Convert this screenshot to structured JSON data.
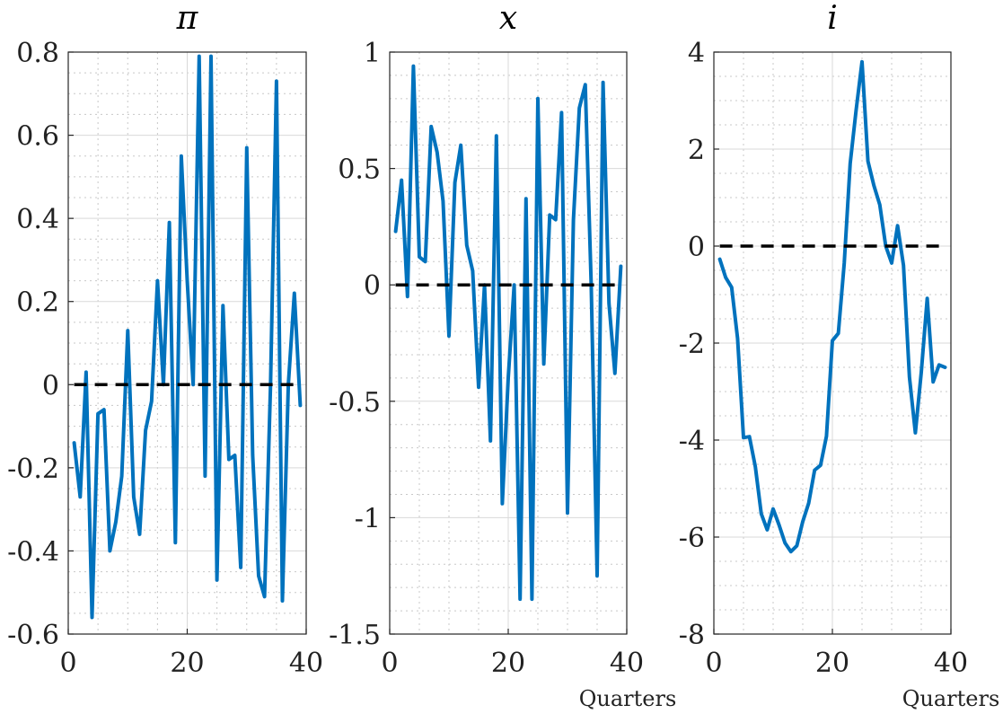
{
  "chart_data": [
    {
      "type": "line",
      "title": "π",
      "xlabel": "",
      "xlim": [
        0,
        40
      ],
      "ylim": [
        -0.6,
        0.8
      ],
      "xticks": [
        0,
        20,
        40
      ],
      "xtick_labels": [
        "0",
        "20",
        "40"
      ],
      "yticks": [
        -0.6,
        -0.4,
        -0.2,
        0,
        0.2,
        0.4,
        0.6,
        0.8
      ],
      "ytick_labels": [
        "-0.6",
        "-0.4",
        "-0.2",
        "0",
        "0.2",
        "0.4",
        "0.6",
        "0.8"
      ],
      "grid": true,
      "minor_grid": true,
      "reference_line": {
        "y": 0,
        "x": [
          1,
          39
        ],
        "style": "dashed",
        "color": "#000000"
      },
      "series": [
        {
          "color": "#0072BD",
          "x": [
            1,
            2,
            3,
            4,
            5,
            6,
            7,
            8,
            9,
            10,
            11,
            12,
            13,
            14,
            15,
            16,
            17,
            18,
            19,
            20,
            21,
            22,
            23,
            24,
            25,
            26,
            27,
            28,
            29,
            30,
            31,
            32,
            33,
            34,
            35,
            36,
            37,
            38,
            39
          ],
          "values": [
            -0.14,
            -0.27,
            0.03,
            -0.56,
            -0.07,
            -0.06,
            -0.4,
            -0.33,
            -0.22,
            0.13,
            -0.27,
            -0.36,
            -0.11,
            -0.04,
            0.25,
            0.0,
            0.39,
            -0.38,
            0.55,
            0.25,
            0.0,
            0.79,
            -0.22,
            0.79,
            -0.47,
            0.19,
            -0.18,
            -0.17,
            -0.44,
            0.57,
            -0.17,
            -0.46,
            -0.51,
            0.0,
            0.73,
            -0.52,
            0.0,
            0.22,
            -0.05
          ]
        }
      ]
    },
    {
      "type": "line",
      "title": "x",
      "xlabel": "Quarters",
      "xlim": [
        0,
        40
      ],
      "ylim": [
        -1.5,
        1
      ],
      "xticks": [
        0,
        20,
        40
      ],
      "xtick_labels": [
        "0",
        "20",
        "40"
      ],
      "yticks": [
        -1.5,
        -1,
        -0.5,
        0,
        0.5,
        1
      ],
      "ytick_labels": [
        "-1.5",
        "-1",
        "-0.5",
        "0",
        "0.5",
        "1"
      ],
      "grid": true,
      "minor_grid": true,
      "reference_line": {
        "y": 0,
        "x": [
          1,
          39
        ],
        "style": "dashed",
        "color": "#000000"
      },
      "series": [
        {
          "color": "#0072BD",
          "x": [
            1,
            2,
            3,
            4,
            5,
            6,
            7,
            8,
            9,
            10,
            11,
            12,
            13,
            14,
            15,
            16,
            17,
            18,
            19,
            20,
            21,
            22,
            23,
            24,
            25,
            26,
            27,
            28,
            29,
            30,
            31,
            32,
            33,
            34,
            35,
            36,
            37,
            38,
            39
          ],
          "values": [
            0.23,
            0.45,
            -0.05,
            0.94,
            0.12,
            0.1,
            0.68,
            0.57,
            0.36,
            -0.22,
            0.44,
            0.6,
            0.17,
            0.06,
            -0.44,
            0.0,
            -0.67,
            0.64,
            -0.94,
            -0.4,
            0.0,
            -1.35,
            0.37,
            -1.35,
            0.8,
            -0.34,
            0.3,
            0.28,
            0.74,
            -0.98,
            0.28,
            0.76,
            0.86,
            0.0,
            -1.25,
            0.87,
            -0.08,
            -0.38,
            0.08
          ]
        }
      ]
    },
    {
      "type": "line",
      "title": "i",
      "xlabel": "Quarters",
      "xlim": [
        0,
        40
      ],
      "ylim": [
        -8,
        4
      ],
      "xticks": [
        0,
        20,
        40
      ],
      "xtick_labels": [
        "0",
        "20",
        "40"
      ],
      "yticks": [
        -8,
        -6,
        -4,
        -2,
        0,
        2,
        4
      ],
      "ytick_labels": [
        "-8",
        "-6",
        "-4",
        "-2",
        "0",
        "2",
        "4"
      ],
      "grid": true,
      "minor_grid": true,
      "reference_line": {
        "y": 0,
        "x": [
          1,
          39
        ],
        "style": "dashed",
        "color": "#000000"
      },
      "series": [
        {
          "color": "#0072BD",
          "x": [
            1,
            2,
            3,
            4,
            5,
            6,
            7,
            8,
            9,
            10,
            11,
            12,
            13,
            14,
            15,
            16,
            17,
            18,
            19,
            20,
            21,
            22,
            23,
            24,
            25,
            26,
            27,
            28,
            29,
            30,
            31,
            32,
            33,
            34,
            35,
            36,
            37,
            38,
            39
          ],
          "values": [
            -0.27,
            -0.65,
            -0.85,
            -1.9,
            -3.95,
            -3.93,
            -4.55,
            -5.52,
            -5.85,
            -5.42,
            -5.75,
            -6.12,
            -6.3,
            -6.18,
            -5.68,
            -5.3,
            -4.62,
            -4.52,
            -3.92,
            -1.95,
            -1.8,
            -0.35,
            1.7,
            2.8,
            3.8,
            1.75,
            1.25,
            0.85,
            0.0,
            -0.35,
            0.42,
            -0.4,
            -2.7,
            -3.85,
            -2.6,
            -1.08,
            -2.8,
            -2.45,
            -2.5
          ]
        }
      ]
    }
  ]
}
